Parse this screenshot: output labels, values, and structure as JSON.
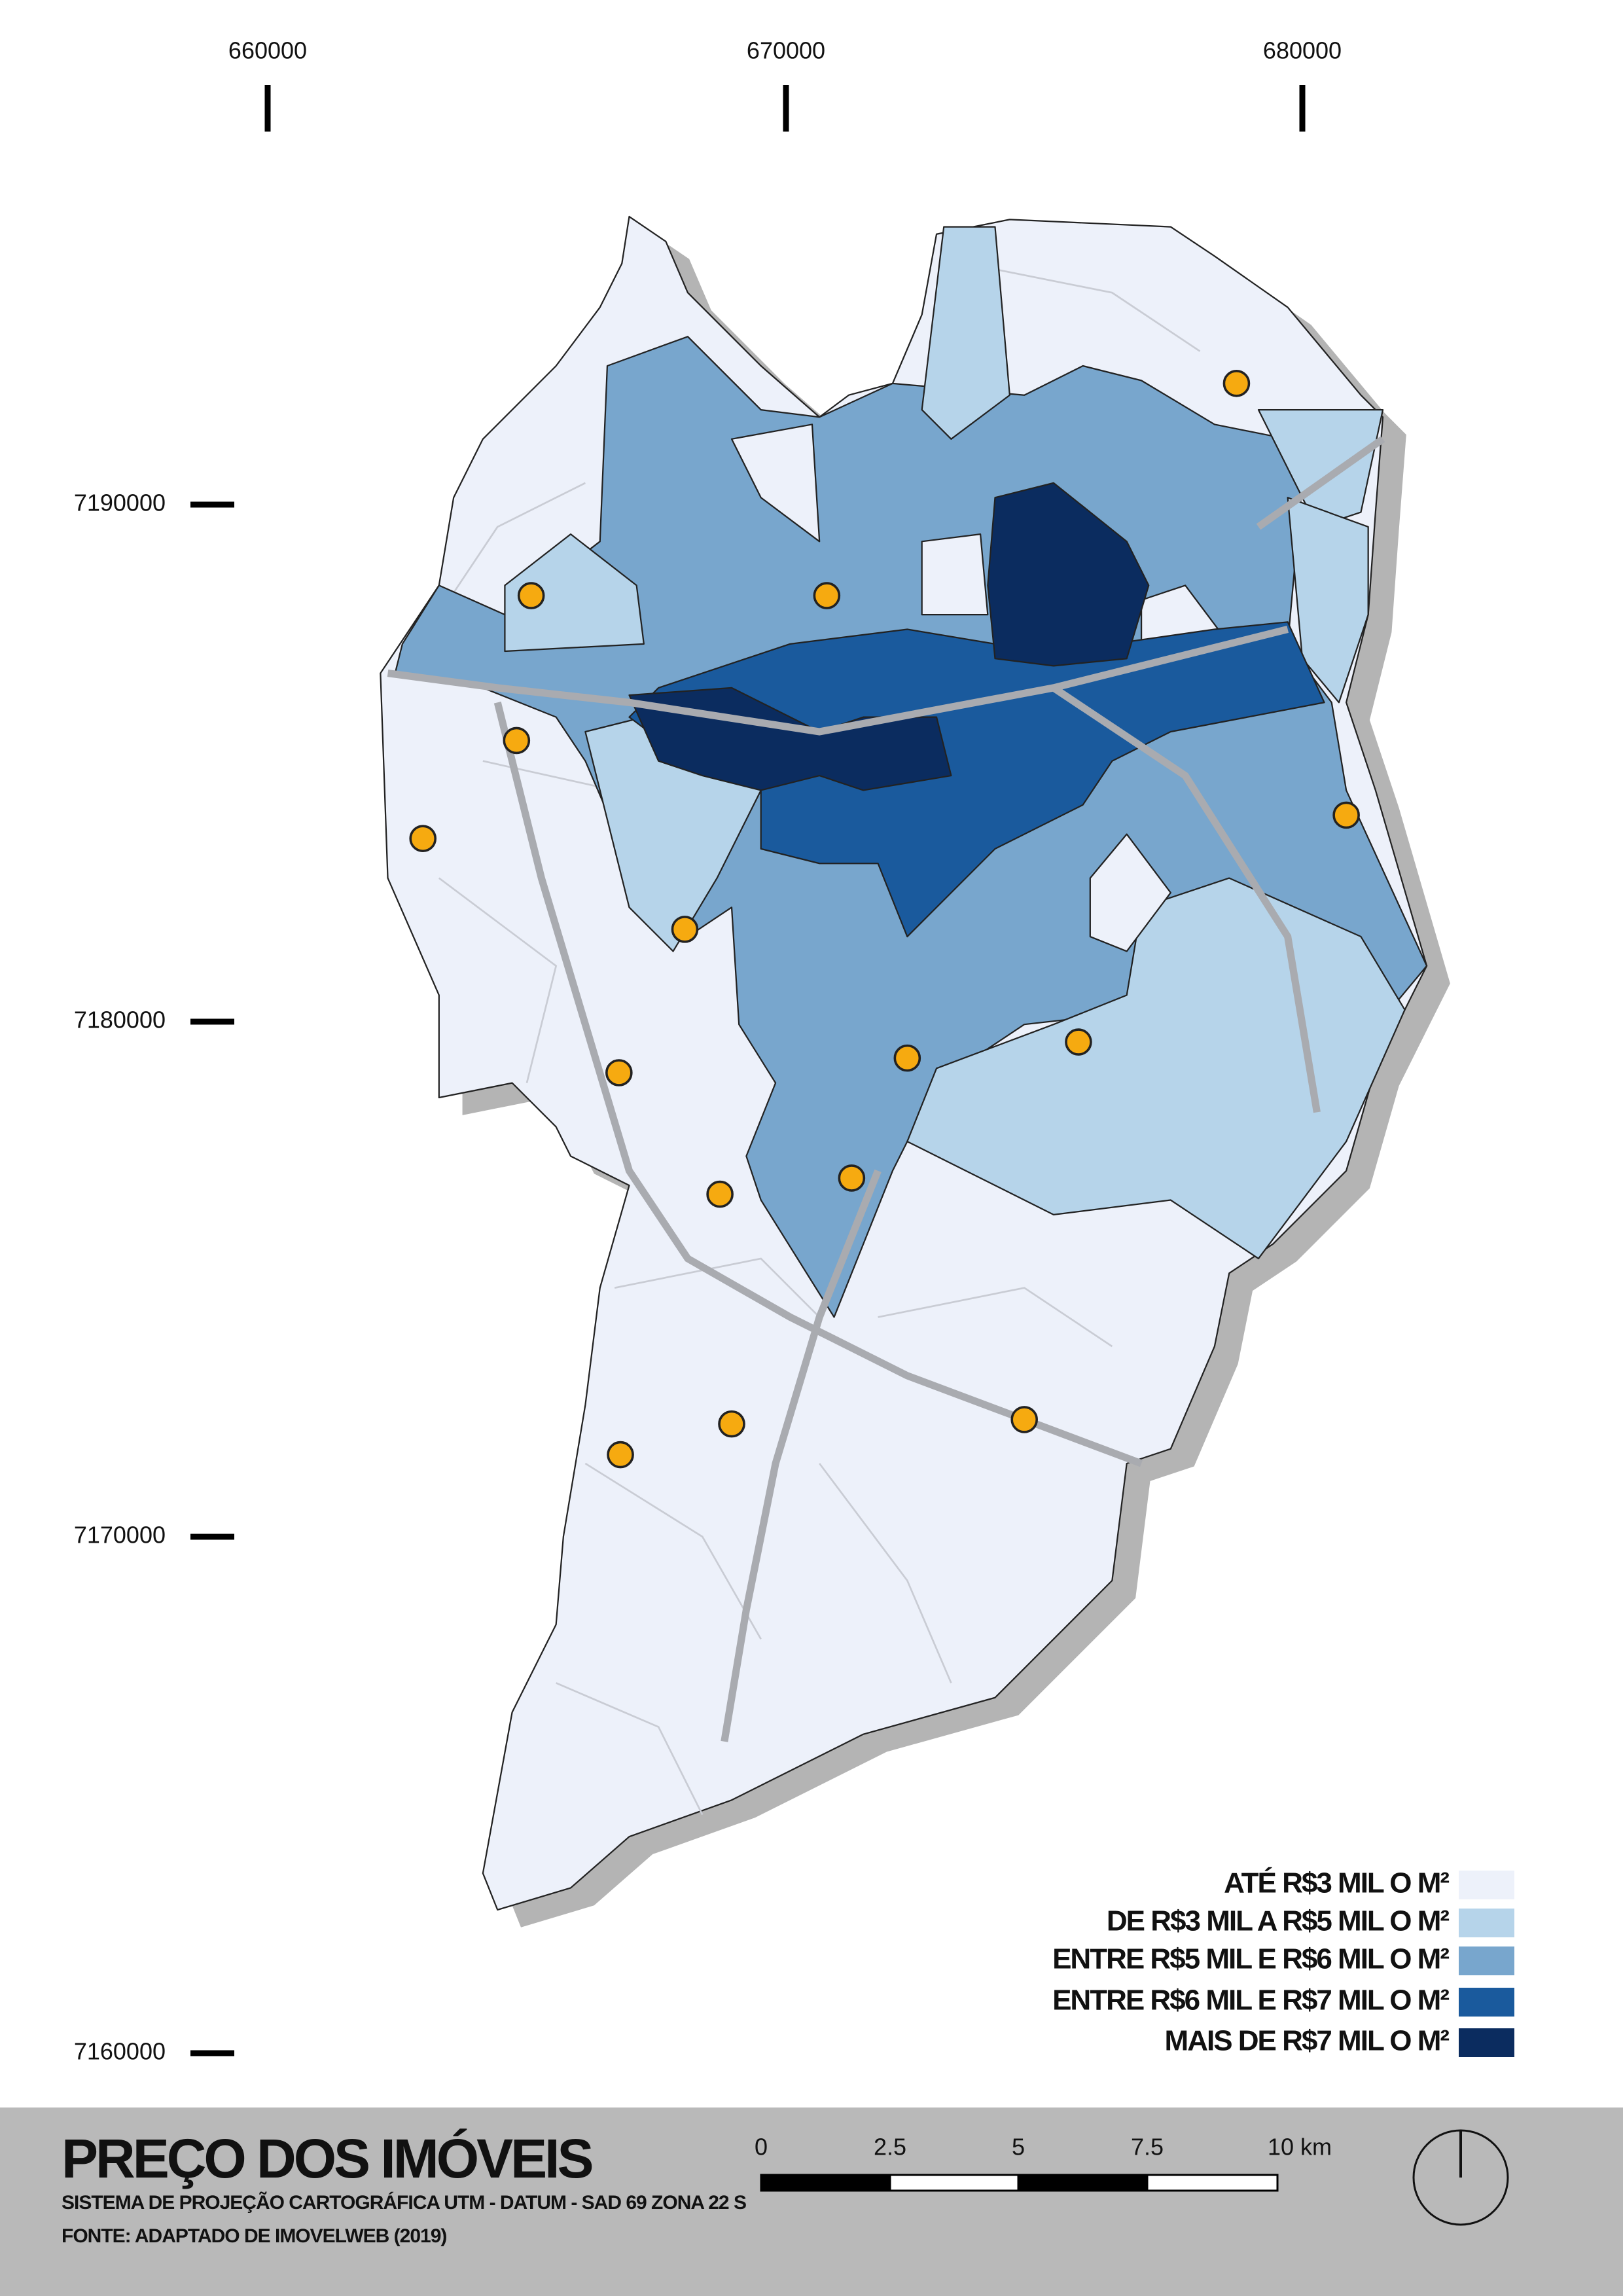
{
  "map": {
    "x_ticks": [
      "660000",
      "670000",
      "680000"
    ],
    "y_ticks": [
      "7190000",
      "7180000",
      "7170000",
      "7160000"
    ],
    "legend": [
      {
        "label": "ATÉ R$3 MIL O M²",
        "color": "#edf1fa"
      },
      {
        "label": "DE R$3 MIL A R$5 MIL O M²",
        "color": "#b6d4ea"
      },
      {
        "label": "ENTRE R$5 MIL E R$6 MIL O M²",
        "color": "#78a6cd"
      },
      {
        "label": "ENTRE R$6 MIL E R$7 MIL O M²",
        "color": "#1a5a9d"
      },
      {
        "label": "MAIS DE R$7 MIL O M²",
        "color": "#0b2c5f"
      }
    ],
    "title": "PREÇO DOS IMÓVEIS",
    "subtitle": "SISTEMA DE PROJEÇÃO CARTOGRÁFICA UTM - DATUM - SAD 69 ZONA 22 S",
    "source": "FONTE: ADAPTADO DE IMOVELWEB (2019)",
    "scale_bar": [
      "0",
      "2.5",
      "5",
      "7.5",
      "10 km"
    ]
  }
}
